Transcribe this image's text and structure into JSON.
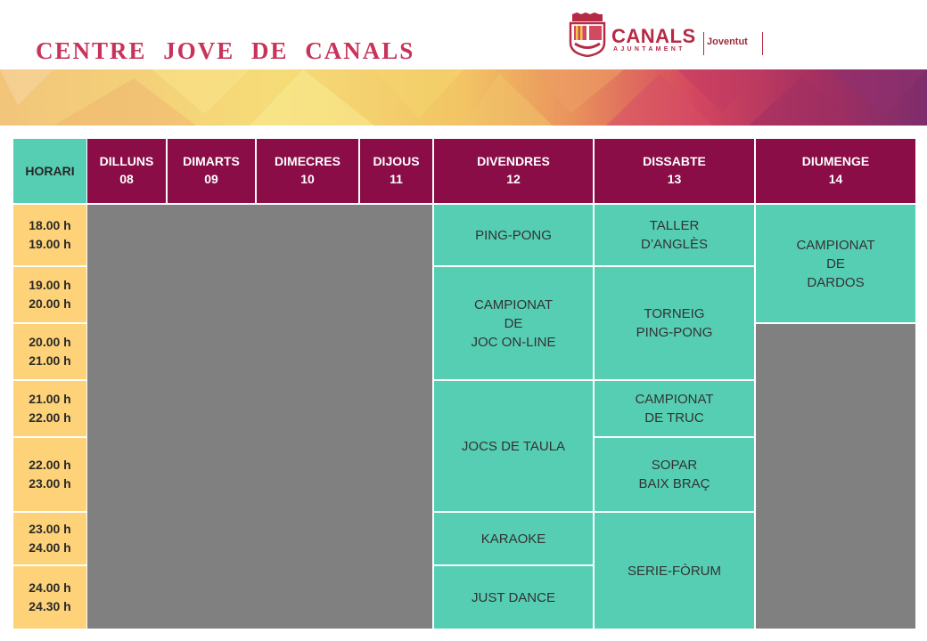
{
  "header": {
    "title": "CENTRE JOVE DE CANALS",
    "logo": {
      "name": "CANALS",
      "subtitle": "AJUNTAMENT",
      "division": "Joventut",
      "shield": "canals-coat-of-arms-icon"
    }
  },
  "colors": {
    "title": "#c8335a",
    "day_header": "#8a0d47",
    "horari_header": "#56ceb3",
    "time_cells": "#fdd278",
    "activity": "#56ceb3",
    "closed": "#808080"
  },
  "table": {
    "horari_label": "HORARI",
    "days": [
      {
        "name": "DILLUNS",
        "date": "08"
      },
      {
        "name": "DIMARTS",
        "date": "09"
      },
      {
        "name": "DIMECRES",
        "date": "10"
      },
      {
        "name": "DIJOUS",
        "date": "11"
      },
      {
        "name": "DIVENDRES",
        "date": "12"
      },
      {
        "name": "DISSABTE",
        "date": "13"
      },
      {
        "name": "DIUMENGE",
        "date": "14"
      }
    ],
    "slots": [
      {
        "start": "18.00  h",
        "end": "19.00  h"
      },
      {
        "start": "19.00  h",
        "end": "20.00  h"
      },
      {
        "start": "20.00  h",
        "end": "21.00  h"
      },
      {
        "start": "21.00  h",
        "end": "22.00  h"
      },
      {
        "start": "22.00  h",
        "end": "23.00  h"
      },
      {
        "start": "23.00  h",
        "end": "24.00  h"
      },
      {
        "start": "24.00  h",
        "end": "24.30  h"
      }
    ],
    "activities": {
      "friday": [
        "PING-PONG",
        "CAMPIONAT\nDE\nJOC ON-LINE",
        "JOCS  DE  TAULA",
        "KARAOKE",
        "JUST  DANCE"
      ],
      "saturday": [
        "TALLER\nD’ANGLÈS",
        "TORNEIG\nPING-PONG",
        "CAMPIONAT\nDE TRUC",
        "SOPAR\nBAIX BRAÇ",
        "SERIE-FÒRUM"
      ],
      "sunday": [
        "CAMPIONAT\nDE\nDARDOS"
      ]
    }
  }
}
